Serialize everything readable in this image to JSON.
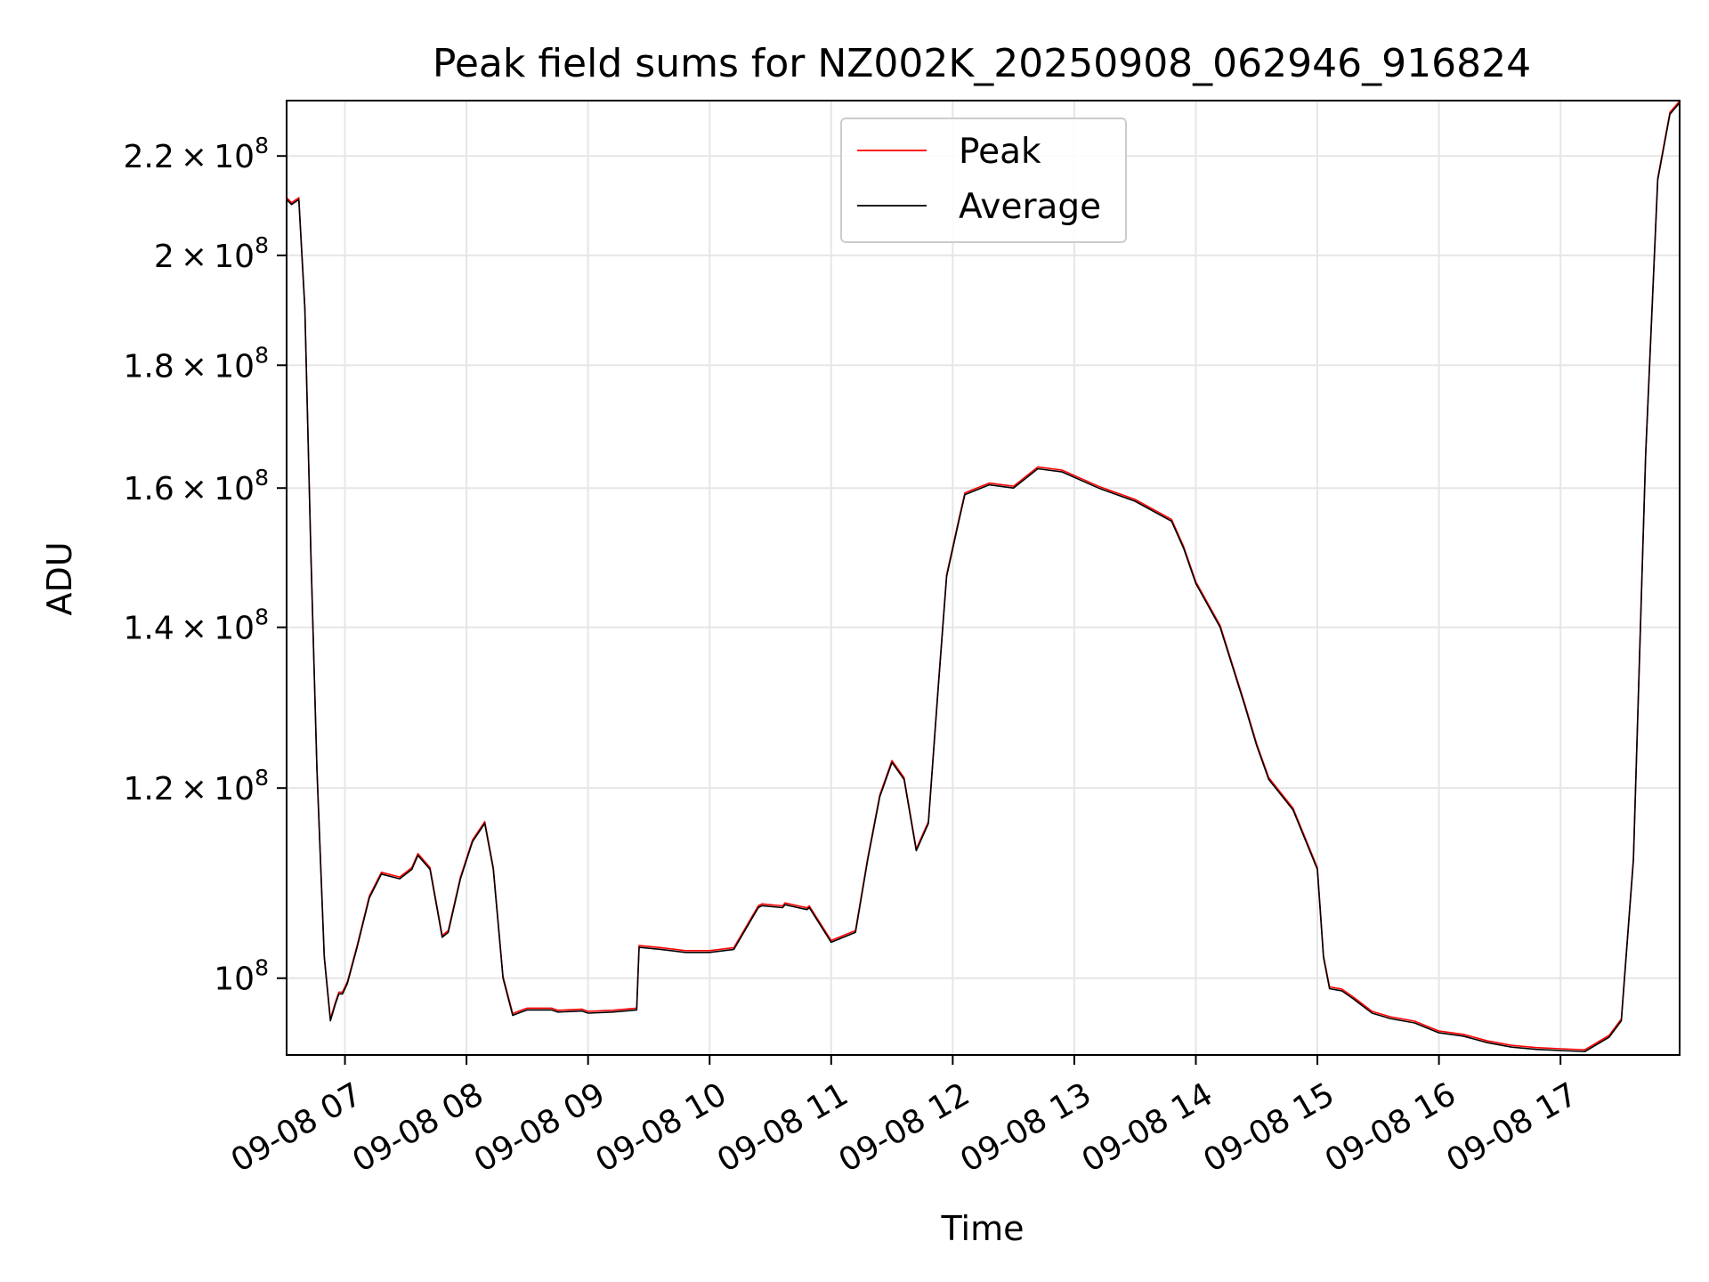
{
  "chart_data": {
    "type": "line",
    "title": "Peak field sums for NZ002K_20250908_062946_916824",
    "xlabel": "Time",
    "ylabel": "ADU",
    "yscale": "log",
    "grid": true,
    "legend_position": "top-center",
    "x_unit": "hour of 2025-09-08",
    "xlim": [
      6.52,
      17.98
    ],
    "ylim": [
      92900000,
      232000000
    ],
    "x_ticks": [
      "09-08 07",
      "09-08 08",
      "09-08 09",
      "09-08 10",
      "09-08 11",
      "09-08 12",
      "09-08 13",
      "09-08 14",
      "09-08 15",
      "09-08 16",
      "09-08 17"
    ],
    "y_ticks": [
      {
        "value": 100000000,
        "mant": "",
        "exp": "8"
      },
      {
        "value": 120000000,
        "mant": "1.2",
        "exp": "8"
      },
      {
        "value": 140000000,
        "mant": "1.4",
        "exp": "8"
      },
      {
        "value": 160000000,
        "mant": "1.6",
        "exp": "8"
      },
      {
        "value": 180000000,
        "mant": "1.8",
        "exp": "8"
      },
      {
        "value": 200000000,
        "mant": "2",
        "exp": "8"
      },
      {
        "value": 220000000,
        "mant": "2.2",
        "exp": "8"
      }
    ],
    "series": [
      {
        "name": "Peak",
        "color": "#ff0000"
      },
      {
        "name": "Average",
        "color": "#000000"
      }
    ],
    "x": [
      6.52,
      6.56,
      6.62,
      6.67,
      6.72,
      6.77,
      6.83,
      6.88,
      6.92,
      6.95,
      6.98,
      7.02,
      7.1,
      7.2,
      7.3,
      7.45,
      7.55,
      7.6,
      7.7,
      7.8,
      7.85,
      7.95,
      8.05,
      8.15,
      8.22,
      8.3,
      8.38,
      8.45,
      8.5,
      8.6,
      8.7,
      8.75,
      8.95,
      9.0,
      9.2,
      9.4,
      9.42,
      9.6,
      9.8,
      10.0,
      10.2,
      10.4,
      10.43,
      10.6,
      10.62,
      10.8,
      10.82,
      11.0,
      11.2,
      11.3,
      11.4,
      11.5,
      11.6,
      11.7,
      11.8,
      11.88,
      11.95,
      12.05,
      12.1,
      12.3,
      12.5,
      12.7,
      12.9,
      13.2,
      13.5,
      13.8,
      13.9,
      14.0,
      14.2,
      14.4,
      14.5,
      14.6,
      14.8,
      15.0,
      15.05,
      15.1,
      15.2,
      15.3,
      15.45,
      15.6,
      15.8,
      16.0,
      16.2,
      16.4,
      16.6,
      16.8,
      17.0,
      17.2,
      17.4,
      17.5,
      17.6,
      17.7,
      17.8,
      17.9,
      17.98
    ],
    "average": [
      211000000,
      210000000,
      211000000,
      190000000,
      150000000,
      122000000,
      102000000,
      96000000,
      97500000,
      98500000,
      98500000,
      99500000,
      103000000,
      108000000,
      110500000,
      110000000,
      111000000,
      112500000,
      111000000,
      104000000,
      104500000,
      110000000,
      114000000,
      116000000,
      111000000,
      100000000,
      96500000,
      96800000,
      97000000,
      97000000,
      97000000,
      96800000,
      96900000,
      96700000,
      96800000,
      97000000,
      103000000,
      102800000,
      102500000,
      102500000,
      102800000,
      107000000,
      107200000,
      107000000,
      107300000,
      106800000,
      107000000,
      103500000,
      104500000,
      112000000,
      119000000,
      123000000,
      121000000,
      113000000,
      116000000,
      132000000,
      147000000,
      155000000,
      159000000,
      160500000,
      160000000,
      163000000,
      162500000,
      160000000,
      158000000,
      155000000,
      151000000,
      146000000,
      140000000,
      130000000,
      125000000,
      121000000,
      117500000,
      111000000,
      102000000,
      99000000,
      98800000,
      98000000,
      96700000,
      96200000,
      95800000,
      94900000,
      94600000,
      94000000,
      93600000,
      93400000,
      93300000,
      93200000,
      94500000,
      96000000,
      112000000,
      165000000,
      215000000,
      229000000,
      231500000
    ]
  }
}
